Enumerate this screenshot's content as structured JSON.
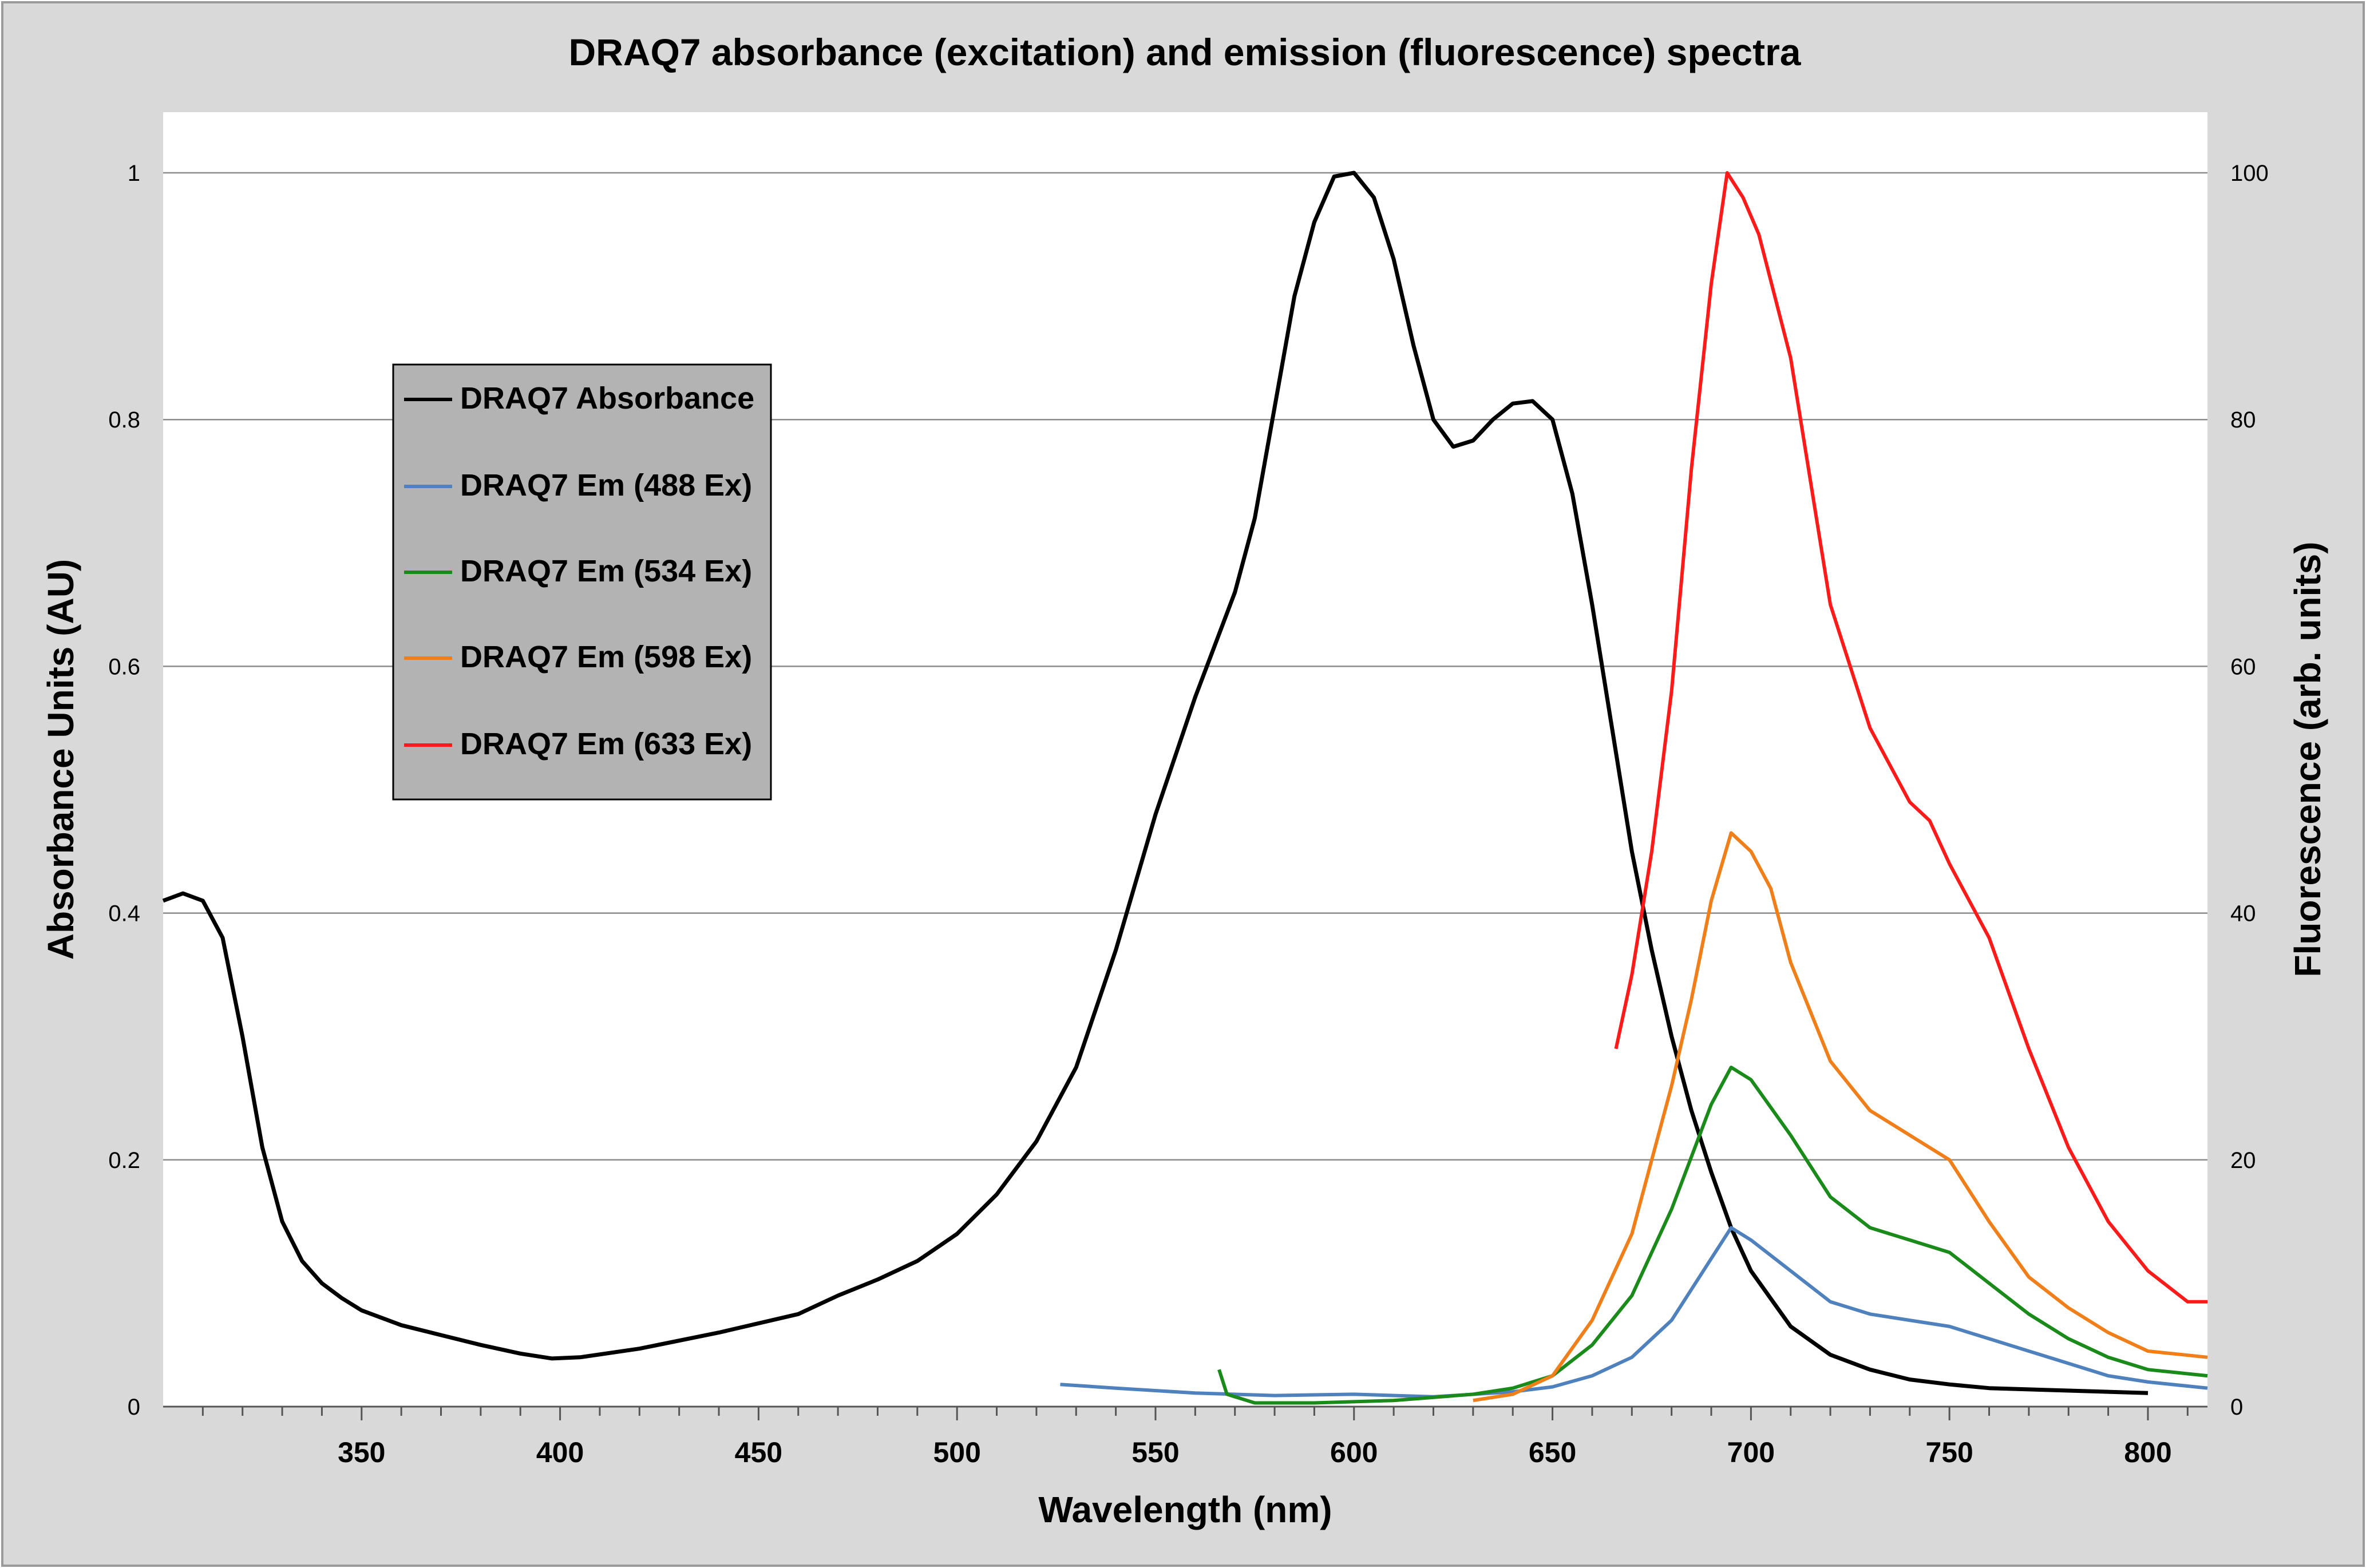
{
  "chart_data": {
    "type": "line",
    "title": "DRAQ7 absorbance (excitation) and emission (fluorescence) spectra",
    "xlabel": "Wavelength (nm)",
    "ylabel": "Absorbance Units (AU)",
    "y2label": "Fluorescence (arb. units)",
    "xlim": [
      300,
      815
    ],
    "ylim": [
      0,
      1
    ],
    "y2lim": [
      0,
      100
    ],
    "x_ticks": [
      350,
      400,
      450,
      500,
      550,
      600,
      650,
      700,
      750,
      800
    ],
    "y_ticks": [
      0,
      0.2,
      0.4,
      0.6,
      0.8,
      1
    ],
    "y2_ticks": [
      0,
      20,
      40,
      60,
      80,
      100
    ],
    "grid": "horizontal",
    "legend_position": "upper-left",
    "series": [
      {
        "name": "DRAQ7 Absorbance",
        "axis": "left",
        "color": "#000000",
        "points": [
          [
            300,
            0.41
          ],
          [
            305,
            0.416
          ],
          [
            310,
            0.41
          ],
          [
            315,
            0.38
          ],
          [
            320,
            0.3
          ],
          [
            325,
            0.21
          ],
          [
            330,
            0.15
          ],
          [
            335,
            0.118
          ],
          [
            340,
            0.1
          ],
          [
            345,
            0.088
          ],
          [
            350,
            0.078
          ],
          [
            360,
            0.066
          ],
          [
            370,
            0.058
          ],
          [
            380,
            0.05
          ],
          [
            390,
            0.043
          ],
          [
            398,
            0.039
          ],
          [
            405,
            0.04
          ],
          [
            420,
            0.047
          ],
          [
            440,
            0.06
          ],
          [
            460,
            0.075
          ],
          [
            470,
            0.09
          ],
          [
            480,
            0.103
          ],
          [
            490,
            0.118
          ],
          [
            500,
            0.14
          ],
          [
            510,
            0.172
          ],
          [
            520,
            0.215
          ],
          [
            530,
            0.275
          ],
          [
            540,
            0.37
          ],
          [
            550,
            0.48
          ],
          [
            560,
            0.575
          ],
          [
            570,
            0.66
          ],
          [
            575,
            0.72
          ],
          [
            580,
            0.81
          ],
          [
            585,
            0.9
          ],
          [
            590,
            0.96
          ],
          [
            595,
            0.997
          ],
          [
            600,
            1.0
          ],
          [
            605,
            0.98
          ],
          [
            610,
            0.93
          ],
          [
            615,
            0.86
          ],
          [
            620,
            0.8
          ],
          [
            625,
            0.778
          ],
          [
            630,
            0.783
          ],
          [
            635,
            0.8
          ],
          [
            640,
            0.813
          ],
          [
            645,
            0.815
          ],
          [
            650,
            0.8
          ],
          [
            655,
            0.74
          ],
          [
            660,
            0.65
          ],
          [
            665,
            0.55
          ],
          [
            670,
            0.45
          ],
          [
            675,
            0.37
          ],
          [
            680,
            0.3
          ],
          [
            685,
            0.24
          ],
          [
            690,
            0.19
          ],
          [
            695,
            0.145
          ],
          [
            700,
            0.11
          ],
          [
            710,
            0.065
          ],
          [
            720,
            0.042
          ],
          [
            730,
            0.03
          ],
          [
            740,
            0.022
          ],
          [
            750,
            0.018
          ],
          [
            760,
            0.015
          ],
          [
            780,
            0.013
          ],
          [
            800,
            0.011
          ]
        ]
      },
      {
        "name": "DRAQ7 Em (488 Ex)",
        "axis": "right",
        "color": "#4f81bd",
        "points": [
          [
            526,
            1.8
          ],
          [
            540,
            1.5
          ],
          [
            560,
            1.1
          ],
          [
            580,
            0.9
          ],
          [
            600,
            1.0
          ],
          [
            620,
            0.8
          ],
          [
            640,
            1.2
          ],
          [
            650,
            1.6
          ],
          [
            660,
            2.5
          ],
          [
            670,
            4.0
          ],
          [
            680,
            7.0
          ],
          [
            690,
            12.0
          ],
          [
            695,
            14.5
          ],
          [
            700,
            13.5
          ],
          [
            710,
            11.0
          ],
          [
            720,
            8.5
          ],
          [
            730,
            7.5
          ],
          [
            740,
            7.0
          ],
          [
            750,
            6.5
          ],
          [
            760,
            5.5
          ],
          [
            770,
            4.5
          ],
          [
            780,
            3.5
          ],
          [
            790,
            2.5
          ],
          [
            800,
            2.0
          ],
          [
            815,
            1.5
          ]
        ]
      },
      {
        "name": "DRAQ7 Em (534 Ex)",
        "axis": "right",
        "color": "#1a8a1a",
        "points": [
          [
            566,
            3.0
          ],
          [
            568,
            1.0
          ],
          [
            575,
            0.3
          ],
          [
            590,
            0.3
          ],
          [
            610,
            0.5
          ],
          [
            630,
            1.0
          ],
          [
            640,
            1.5
          ],
          [
            650,
            2.5
          ],
          [
            660,
            5.0
          ],
          [
            670,
            9.0
          ],
          [
            680,
            16.0
          ],
          [
            690,
            24.5
          ],
          [
            695,
            27.5
          ],
          [
            700,
            26.5
          ],
          [
            710,
            22.0
          ],
          [
            720,
            17.0
          ],
          [
            730,
            14.5
          ],
          [
            740,
            13.5
          ],
          [
            750,
            12.5
          ],
          [
            760,
            10.0
          ],
          [
            770,
            7.5
          ],
          [
            780,
            5.5
          ],
          [
            790,
            4.0
          ],
          [
            800,
            3.0
          ],
          [
            815,
            2.5
          ]
        ]
      },
      {
        "name": "DRAQ7 Em (598 Ex)",
        "axis": "right",
        "color": "#f07f1a",
        "points": [
          [
            630,
            0.5
          ],
          [
            640,
            1.0
          ],
          [
            650,
            2.5
          ],
          [
            660,
            7.0
          ],
          [
            670,
            14.0
          ],
          [
            680,
            26.0
          ],
          [
            685,
            33.0
          ],
          [
            690,
            41.0
          ],
          [
            695,
            46.5
          ],
          [
            700,
            45.0
          ],
          [
            705,
            42.0
          ],
          [
            710,
            36.0
          ],
          [
            720,
            28.0
          ],
          [
            730,
            24.0
          ],
          [
            740,
            22.0
          ],
          [
            750,
            20.0
          ],
          [
            760,
            15.0
          ],
          [
            770,
            10.5
          ],
          [
            780,
            8.0
          ],
          [
            790,
            6.0
          ],
          [
            800,
            4.5
          ],
          [
            815,
            4.0
          ]
        ]
      },
      {
        "name": "DRAQ7 Em (633 Ex)",
        "axis": "right",
        "color": "#ff1a1a",
        "points": [
          [
            666,
            29.0
          ],
          [
            670,
            35.0
          ],
          [
            675,
            45.0
          ],
          [
            680,
            58.0
          ],
          [
            685,
            76.0
          ],
          [
            690,
            91.0
          ],
          [
            694,
            100.0
          ],
          [
            698,
            98.0
          ],
          [
            702,
            95.0
          ],
          [
            710,
            85.0
          ],
          [
            720,
            65.0
          ],
          [
            730,
            55.0
          ],
          [
            740,
            49.0
          ],
          [
            745,
            47.5
          ],
          [
            750,
            44.0
          ],
          [
            760,
            38.0
          ],
          [
            770,
            29.0
          ],
          [
            780,
            21.0
          ],
          [
            790,
            15.0
          ],
          [
            800,
            11.0
          ],
          [
            810,
            8.5
          ],
          [
            815,
            8.5
          ]
        ]
      }
    ]
  }
}
